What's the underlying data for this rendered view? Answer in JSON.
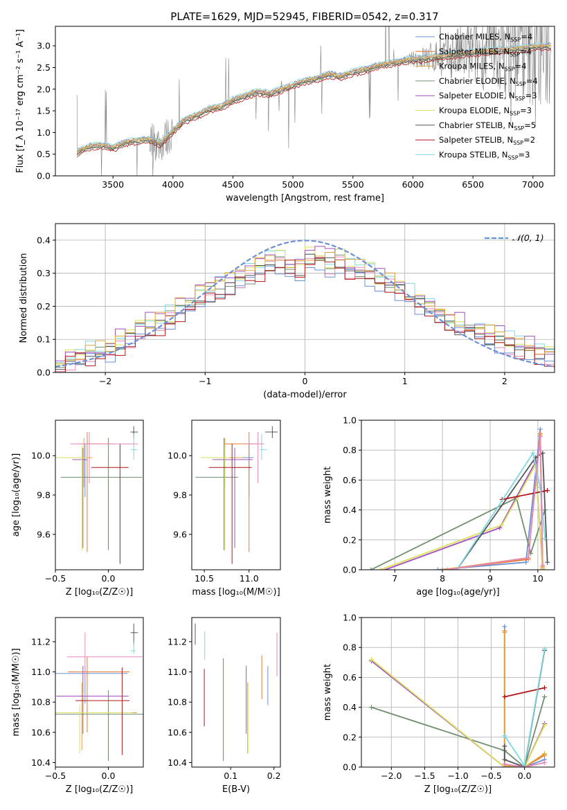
{
  "figure_title": "PLATE=1629, MJD=52945, FIBERID=0542, z=0.317",
  "series_colors": [
    "#6b8fd6",
    "#e8782d",
    "#e0a43a",
    "#6f8f6f",
    "#a24fbf",
    "#d9e05a",
    "#555555",
    "#b01515",
    "#7fd8e0",
    "#e887b8"
  ],
  "chart_data": [
    {
      "id": "spectrum",
      "type": "line",
      "title": "PLATE=1629, MJD=52945, FIBERID=0542, z=0.317",
      "xlabel": "wavelength [Angstrom, rest frame]",
      "ylabel": "Flux [f_λ 10⁻¹⁷ erg cm⁻² s⁻¹ A⁻¹]",
      "xlim": [
        3020,
        7180
      ],
      "ylim": [
        0,
        3.45
      ],
      "xticks": [
        3500,
        4000,
        4500,
        5000,
        5500,
        6000,
        6500,
        7000
      ],
      "yticks": [
        0.0,
        0.5,
        1.0,
        1.5,
        2.0,
        2.5,
        3.0
      ],
      "grid": false,
      "legend_position": "top-right",
      "data": {
        "x": [
          3200,
          3300,
          3400,
          3500,
          3600,
          3700,
          3800,
          3900,
          4000,
          4100,
          4200,
          4300,
          4400,
          4500,
          4600,
          4700,
          4800,
          4900,
          5000,
          5100,
          5200,
          5300,
          5400,
          5500,
          5600,
          5700,
          5800,
          5900,
          6000,
          6100,
          6200,
          6300,
          6400,
          6500,
          6600,
          6700,
          6800,
          6900,
          7000,
          7100
        ],
        "y": [
          0.55,
          0.68,
          0.72,
          0.65,
          0.78,
          0.82,
          0.85,
          0.75,
          1.05,
          1.3,
          1.4,
          1.55,
          1.6,
          1.75,
          1.85,
          1.95,
          1.9,
          2.0,
          2.1,
          2.2,
          2.25,
          2.35,
          2.3,
          2.4,
          2.45,
          2.55,
          2.6,
          2.65,
          2.7,
          2.72,
          2.75,
          2.78,
          2.82,
          2.85,
          2.88,
          2.9,
          2.92,
          2.95,
          2.98,
          3.0
        ]
      },
      "model_offsets": [
        0.0,
        0.02,
        -0.02,
        -0.05,
        0.04,
        0.03,
        -0.04,
        -0.09,
        0.06
      ],
      "legend": [
        {
          "label": "Chabrier MILES, N",
          "sub": "SSP",
          "value": "=4"
        },
        {
          "label": "Salpeter MILES, N",
          "sub": "SSP",
          "value": "=4"
        },
        {
          "label": "Kroupa MILES, N",
          "sub": "SSP",
          "value": "=4"
        },
        {
          "label": "Chabrier ELODIE, N",
          "sub": "SSP",
          "value": "=4"
        },
        {
          "label": "Salpeter ELODIE, N",
          "sub": "SSP",
          "value": "=3"
        },
        {
          "label": "Kroupa ELODIE, N",
          "sub": "SSP",
          "value": "=3"
        },
        {
          "label": "Chabrier STELIB, N",
          "sub": "SSP",
          "value": "=5"
        },
        {
          "label": "Salpeter STELIB, N",
          "sub": "SSP",
          "value": "=2"
        },
        {
          "label": "Kroupa STELIB, N",
          "sub": "SSP",
          "value": "=3"
        }
      ]
    },
    {
      "id": "residuals",
      "type": "line",
      "xlabel": "(data-model)/error",
      "ylabel": "Normed distribution",
      "xlim": [
        -2.5,
        2.5
      ],
      "ylim": [
        0,
        0.45
      ],
      "xticks": [
        -2,
        -1,
        0,
        1,
        2
      ],
      "yticks": [
        0.0,
        0.1,
        0.2,
        0.3,
        0.4
      ],
      "grid": true,
      "legend_position": "top-right",
      "legend": [
        {
          "label": "𝒩(0, 1)"
        }
      ],
      "bin_width": 0.1,
      "bins_x": [
        -2.5,
        -2.4,
        -2.3,
        -2.2,
        -2.1,
        -2.0,
        -1.9,
        -1.8,
        -1.7,
        -1.6,
        -1.5,
        -1.4,
        -1.3,
        -1.2,
        -1.1,
        -1.0,
        -0.9,
        -0.8,
        -0.7,
        -0.6,
        -0.5,
        -0.4,
        -0.3,
        -0.2,
        -0.1,
        0.0,
        0.1,
        0.2,
        0.3,
        0.4,
        0.5,
        0.6,
        0.7,
        0.8,
        0.9,
        1.0,
        1.1,
        1.2,
        1.3,
        1.4,
        1.5,
        1.6,
        1.7,
        1.8,
        1.9,
        2.0,
        2.1,
        2.2,
        2.3,
        2.4
      ],
      "base_hist": [
        0.04,
        0.04,
        0.05,
        0.06,
        0.06,
        0.07,
        0.09,
        0.11,
        0.13,
        0.14,
        0.15,
        0.17,
        0.19,
        0.21,
        0.23,
        0.24,
        0.26,
        0.27,
        0.28,
        0.29,
        0.31,
        0.33,
        0.34,
        0.33,
        0.32,
        0.35,
        0.34,
        0.33,
        0.34,
        0.32,
        0.31,
        0.3,
        0.28,
        0.27,
        0.25,
        0.23,
        0.21,
        0.19,
        0.18,
        0.15,
        0.14,
        0.13,
        0.12,
        0.11,
        0.1,
        0.09,
        0.08,
        0.08,
        0.06,
        0.05
      ],
      "hist_offsets": [
        0.0,
        0.015,
        -0.012,
        0.008,
        -0.018,
        0.02,
        -0.006,
        0.012,
        -0.015
      ],
      "gaussian": {
        "mean": 0,
        "sigma": 1
      }
    },
    {
      "id": "age-vs-Z",
      "type": "errorbar",
      "xlabel": "Z [log₁₀(Z/Z☉)]",
      "ylabel": "age  [log₁₀(age/yr)]",
      "xlim": [
        -0.5,
        0.33
      ],
      "ylim": [
        9.42,
        10.18
      ],
      "xticks": [
        -0.5,
        0.0
      ],
      "yticks": [
        9.6,
        9.8,
        10.0
      ],
      "points": [
        {
          "x": -0.22,
          "y": 9.99,
          "xerr": [
            0.2,
            0.05
          ],
          "yerr": [
            0.2,
            0.07
          ]
        },
        {
          "x": -0.2,
          "y": 10.06,
          "xerr": [
            0.08,
            0.25
          ],
          "yerr": [
            0.55,
            0.06
          ]
        },
        {
          "x": -0.23,
          "y": 9.99,
          "xerr": [
            0.05,
            0.08
          ],
          "yerr": [
            0.15,
            0.1
          ]
        },
        {
          "x": 0.0,
          "y": 9.89,
          "xerr": [
            0.45,
            0.32
          ],
          "yerr": [
            0.37,
            0.2
          ]
        },
        {
          "x": -0.24,
          "y": 9.98,
          "xerr": [
            0.1,
            0.04
          ],
          "yerr": [
            0.45,
            0.06
          ]
        },
        {
          "x": -0.25,
          "y": 9.99,
          "xerr": [
            0.25,
            0.05
          ],
          "yerr": [
            0.47,
            0.06
          ]
        },
        {
          "x": 0.24,
          "y": 10.12,
          "xerr": [
            0.03,
            0.04
          ],
          "yerr": [
            0.03,
            0.03
          ]
        },
        {
          "x": 0.11,
          "y": 9.94,
          "xerr": [
            0.27,
            0.08
          ],
          "yerr": [
            0.49,
            0.12
          ]
        },
        {
          "x": 0.24,
          "y": 10.03,
          "xerr": [
            0.03,
            0.03
          ],
          "yerr": [
            0.05,
            0.08
          ]
        },
        {
          "x": -0.18,
          "y": 10.06,
          "xerr": [
            0.18,
            0.46
          ],
          "yerr": [
            0.2,
            0.06
          ]
        }
      ]
    },
    {
      "id": "age-vs-mass",
      "type": "errorbar",
      "xlabel": "mass [log₁₀(M/M☉)]",
      "ylabel": "",
      "xlim": [
        10.36,
        11.35
      ],
      "ylim": [
        9.42,
        10.18
      ],
      "xticks": [
        10.5,
        11.0
      ],
      "yticks": [
        9.6,
        9.8,
        10.0
      ],
      "points": [
        {
          "x": 11.0,
          "y": 9.99,
          "xerr": [
            0.2,
            0.05
          ],
          "yerr": [
            0.2,
            0.07
          ]
        },
        {
          "x": 11.0,
          "y": 10.06,
          "xerr": [
            0.27,
            0.1
          ],
          "yerr": [
            0.55,
            0.06
          ]
        },
        {
          "x": 10.73,
          "y": 9.99,
          "xerr": [
            0.03,
            0.2
          ],
          "yerr": [
            0.15,
            0.1
          ]
        },
        {
          "x": 10.72,
          "y": 9.89,
          "xerr": [
            0.32,
            0.16
          ],
          "yerr": [
            0.37,
            0.2
          ]
        },
        {
          "x": 10.84,
          "y": 9.98,
          "xerr": [
            0.25,
            0.2
          ],
          "yerr": [
            0.45,
            0.06
          ]
        },
        {
          "x": 10.73,
          "y": 9.99,
          "xerr": [
            0.27,
            0.05
          ],
          "yerr": [
            0.47,
            0.06
          ]
        },
        {
          "x": 11.26,
          "y": 10.12,
          "xerr": [
            0.08,
            0.06
          ],
          "yerr": [
            0.03,
            0.03
          ]
        },
        {
          "x": 10.81,
          "y": 9.94,
          "xerr": [
            0.26,
            0.22
          ],
          "yerr": [
            0.49,
            0.12
          ]
        },
        {
          "x": 11.14,
          "y": 10.03,
          "xerr": [
            0.02,
            0.06
          ],
          "yerr": [
            0.05,
            0.08
          ]
        },
        {
          "x": 11.1,
          "y": 10.06,
          "xerr": [
            0.14,
            0.07
          ],
          "yerr": [
            0.2,
            0.06
          ]
        }
      ]
    },
    {
      "id": "weight-vs-age",
      "type": "line",
      "xlabel": "age  [log₁₀(age/yr)]",
      "ylabel": "mass weight",
      "xlim": [
        6.3,
        10.35
      ],
      "ylim": [
        0,
        1.0
      ],
      "xticks": [
        7,
        8,
        9,
        10
      ],
      "yticks": [
        0.0,
        0.2,
        0.4,
        0.6,
        0.8,
        1.0
      ],
      "grid": true,
      "lines": [
        {
          "x": [
            7.9,
            9.75,
            10.05,
            10.1
          ],
          "y": [
            0.0,
            0.05,
            0.94,
            0.0
          ]
        },
        {
          "x": [
            8.0,
            9.8,
            10.05,
            10.1
          ],
          "y": [
            0.0,
            0.07,
            0.91,
            0.02
          ]
        },
        {
          "x": [
            8.0,
            9.8,
            10.05,
            10.1
          ],
          "y": [
            0.0,
            0.08,
            0.9,
            0.01
          ]
        },
        {
          "x": [
            6.5,
            9.55,
            9.85,
            10.15
          ],
          "y": [
            0.0,
            0.48,
            0.11,
            0.4
          ]
        },
        {
          "x": [
            6.8,
            9.2,
            9.95,
            10.1
          ],
          "y": [
            0.0,
            0.28,
            0.72,
            0.0
          ]
        },
        {
          "x": [
            6.7,
            9.25,
            9.95,
            10.1
          ],
          "y": [
            0.0,
            0.3,
            0.7,
            0.0
          ]
        },
        {
          "x": [
            8.3,
            9.95,
            10.1,
            10.2
          ],
          "y": [
            0.0,
            0.75,
            0.78,
            0.05
          ]
        },
        {
          "x": [
            9.25,
            10.2
          ],
          "y": [
            0.47,
            0.53
          ]
        },
        {
          "x": [
            8.3,
            9.9,
            10.05,
            10.15
          ],
          "y": [
            0.0,
            0.78,
            0.55,
            0.21
          ]
        },
        {
          "x": [
            8.1,
            9.8,
            10.05,
            10.1
          ],
          "y": [
            0.0,
            0.08,
            0.89,
            0.03
          ]
        }
      ]
    },
    {
      "id": "mass-vs-Z",
      "type": "errorbar",
      "xlabel": "Z [log₁₀(Z/Z☉)]",
      "ylabel": "mass [log₁₀(M/M☉)]",
      "xlim": [
        -0.5,
        0.33
      ],
      "ylim": [
        10.37,
        11.36
      ],
      "xticks": [
        -0.5,
        0.0
      ],
      "yticks": [
        10.4,
        10.6,
        10.8,
        11.0,
        11.2
      ],
      "points": [
        {
          "x": -0.22,
          "y": 10.99,
          "xerr": [
            0.3,
            0.4
          ],
          "yerr": [
            0.2,
            0.05
          ]
        },
        {
          "x": -0.2,
          "y": 11.0,
          "xerr": [
            0.18,
            0.4
          ],
          "yerr": [
            0.4,
            0.1
          ]
        },
        {
          "x": -0.25,
          "y": 10.73,
          "xerr": [
            0.45,
            0.52
          ],
          "yerr": [
            0.25,
            0.2
          ]
        },
        {
          "x": 0.0,
          "y": 10.72,
          "xerr": [
            0.55,
            0.36
          ],
          "yerr": [
            0.31,
            0.16
          ]
        },
        {
          "x": -0.24,
          "y": 10.84,
          "xerr": [
            0.25,
            0.43
          ],
          "yerr": [
            0.25,
            0.2
          ]
        },
        {
          "x": -0.27,
          "y": 10.73,
          "xerr": [
            0.23,
            0.49
          ],
          "yerr": [
            0.27,
            0.05
          ]
        },
        {
          "x": 0.24,
          "y": 11.26,
          "xerr": [
            0.03,
            0.04
          ],
          "yerr": [
            0.08,
            0.06
          ]
        },
        {
          "x": 0.13,
          "y": 10.81,
          "xerr": [
            0.44,
            0.07
          ],
          "yerr": [
            0.36,
            0.22
          ]
        },
        {
          "x": 0.24,
          "y": 11.14,
          "xerr": [
            0.03,
            0.02
          ],
          "yerr": [
            0.02,
            0.06
          ]
        },
        {
          "x": -0.22,
          "y": 11.1,
          "xerr": [
            0.17,
            0.54
          ],
          "yerr": [
            0.16,
            0.16
          ]
        }
      ]
    },
    {
      "id": "mass-vs-ebv",
      "type": "errorbar",
      "xlabel": "E(B-V)",
      "ylabel": "",
      "xlim": [
        0.01,
        0.215
      ],
      "ylim": [
        10.37,
        11.36
      ],
      "xticks": [
        0.1,
        0.2
      ],
      "yticks": [
        10.4,
        10.6,
        10.8,
        11.0,
        11.2
      ],
      "points": [
        {
          "x": 0.186,
          "y": 10.99,
          "yerr": [
            0.21,
            0.05
          ]
        },
        {
          "x": 0.172,
          "y": 11.0,
          "yerr": [
            0.18,
            0.11
          ]
        },
        {
          "x": 0.139,
          "y": 10.73,
          "yerr": [
            0.27,
            0.2
          ]
        },
        {
          "x": 0.083,
          "y": 10.72,
          "yerr": [
            0.31,
            0.37
          ]
        },
        {
          "x": 0.136,
          "y": 10.84,
          "yerr": [
            0.25,
            0.2
          ]
        },
        {
          "x": 0.14,
          "y": 10.73,
          "yerr": [
            0.27,
            0.2
          ]
        },
        {
          "x": 0.018,
          "y": 11.26,
          "yerr": [
            0.08,
            0.06
          ]
        },
        {
          "x": 0.039,
          "y": 10.81,
          "yerr": [
            0.17,
            0.21
          ]
        },
        {
          "x": 0.04,
          "y": 11.14,
          "yerr": [
            0.06,
            0.13
          ]
        },
        {
          "x": 0.207,
          "y": 11.1,
          "yerr": [
            0.13,
            0.16
          ]
        }
      ]
    },
    {
      "id": "weight-vs-Z",
      "type": "line",
      "xlabel": "Z [log₁₀(Z/Z☉)]",
      "ylabel": "mass weight",
      "xlim": [
        -2.45,
        0.45
      ],
      "ylim": [
        0,
        1.0
      ],
      "xticks": [
        -2.0,
        -1.5,
        -1.0,
        -0.5,
        0.0
      ],
      "yticks": [
        0.0,
        0.2,
        0.4,
        0.6,
        0.8,
        1.0
      ],
      "grid": true,
      "lines": [
        {
          "x": [
            -0.3,
            -0.3,
            0.0,
            0.3
          ],
          "y": [
            0.94,
            0.0,
            0.0,
            0.05
          ]
        },
        {
          "x": [
            -0.3,
            -0.3,
            0.0,
            0.3
          ],
          "y": [
            0.91,
            0.0,
            0.0,
            0.08
          ]
        },
        {
          "x": [
            -0.3,
            -0.3,
            0.0,
            0.3
          ],
          "y": [
            0.9,
            0.01,
            0.0,
            0.09
          ]
        },
        {
          "x": [
            -2.3,
            -0.3,
            0.0,
            0.3
          ],
          "y": [
            0.4,
            0.11,
            0.0,
            0.47
          ]
        },
        {
          "x": [
            -2.3,
            -0.3,
            0.0,
            0.3
          ],
          "y": [
            0.71,
            0.0,
            0.0,
            0.29
          ]
        },
        {
          "x": [
            -2.3,
            -0.3,
            0.0,
            0.3
          ],
          "y": [
            0.72,
            0.0,
            0.0,
            0.28
          ]
        },
        {
          "x": [
            -0.3,
            -0.3,
            0.0,
            0.3
          ],
          "y": [
            0.14,
            0.05,
            0.0,
            0.78
          ]
        },
        {
          "x": [
            -0.3,
            0.3
          ],
          "y": [
            0.47,
            0.53
          ]
        },
        {
          "x": [
            -0.3,
            0.0,
            0.3
          ],
          "y": [
            0.21,
            0.01,
            0.79
          ]
        },
        {
          "x": [
            -0.3,
            -0.3,
            0.0,
            0.3
          ],
          "y": [
            0.0,
            0.02,
            0.0,
            0.03
          ]
        }
      ]
    }
  ]
}
